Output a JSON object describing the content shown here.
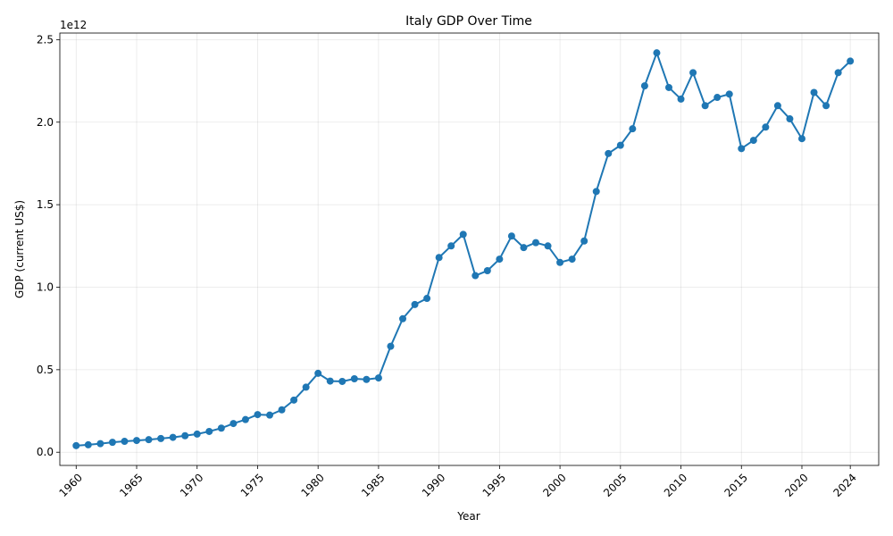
{
  "chart_data": {
    "type": "line",
    "title": "Italy GDP Over Time",
    "xlabel": "Year",
    "ylabel": "GDP (current US$)",
    "y_offset_label": "1e12",
    "xlim": [
      1958.65,
      2026.35
    ],
    "ylim": [
      -80000000000.0,
      2540000000000.0
    ],
    "x_ticks": [
      1960,
      1965,
      1970,
      1975,
      1980,
      1985,
      1990,
      1995,
      2000,
      2005,
      2010,
      2015,
      2020,
      2024
    ],
    "x_tick_labels": [
      "1960",
      "1965",
      "1970",
      "1975",
      "1980",
      "1985",
      "1990",
      "1995",
      "2000",
      "2005",
      "2010",
      "2015",
      "2020",
      "2024"
    ],
    "y_ticks": [
      0,
      500000000000.0,
      1000000000000.0,
      1500000000000.0,
      2000000000000.0,
      2500000000000.0
    ],
    "y_tick_labels": [
      "0.0",
      "0.5",
      "1.0",
      "1.5",
      "2.0",
      "2.5"
    ],
    "grid": true,
    "color": "#1f77b4",
    "series": [
      {
        "x": [
          1960,
          1961,
          1962,
          1963,
          1964,
          1965,
          1966,
          1967,
          1968,
          1969,
          1970,
          1971,
          1972,
          1973,
          1974,
          1975,
          1976,
          1977,
          1978,
          1979,
          1980,
          1981,
          1982,
          1983,
          1984,
          1985,
          1986,
          1987,
          1988,
          1989,
          1990,
          1991,
          1992,
          1993,
          1994,
          1995,
          1996,
          1997,
          1998,
          1999,
          2000,
          2001,
          2002,
          2003,
          2004,
          2005,
          2006,
          2007,
          2008,
          2009,
          2010,
          2011,
          2012,
          2013,
          2014,
          2015,
          2016,
          2017,
          2018,
          2019,
          2020,
          2021,
          2022,
          2023,
          2024
        ],
        "values": [
          40000000000.0,
          45000000000.0,
          52000000000.0,
          60000000000.0,
          66000000000.0,
          71000000000.0,
          76000000000.0,
          83000000000.0,
          90000000000.0,
          100000000000.0,
          110000000000.0,
          126000000000.0,
          146000000000.0,
          174000000000.0,
          198000000000.0,
          228000000000.0,
          225000000000.0,
          257000000000.0,
          316000000000.0,
          394000000000.0,
          478000000000.0,
          431000000000.0,
          429000000000.0,
          445000000000.0,
          441000000000.0,
          450000000000.0,
          642000000000.0,
          809000000000.0,
          895000000000.0,
          932000000000.0,
          1180000000000.0,
          1250000000000.0,
          1320000000000.0,
          1070000000000.0,
          1100000000000.0,
          1170000000000.0,
          1310000000000.0,
          1240000000000.0,
          1270000000000.0,
          1250000000000.0,
          1150000000000.0,
          1170000000000.0,
          1280000000000.0,
          1580000000000.0,
          1810000000000.0,
          1860000000000.0,
          1960000000000.0,
          2220000000000.0,
          2420000000000.0,
          2210000000000.0,
          2140000000000.0,
          2300000000000.0,
          2100000000000.0,
          2150000000000.0,
          2170000000000.0,
          1840000000000.0,
          1890000000000.0,
          1970000000000.0,
          2100000000000.0,
          2020000000000.0,
          1900000000000.0,
          2180000000000.0,
          2100000000000.0,
          2300000000000.0,
          2370000000000.0
        ]
      }
    ]
  }
}
